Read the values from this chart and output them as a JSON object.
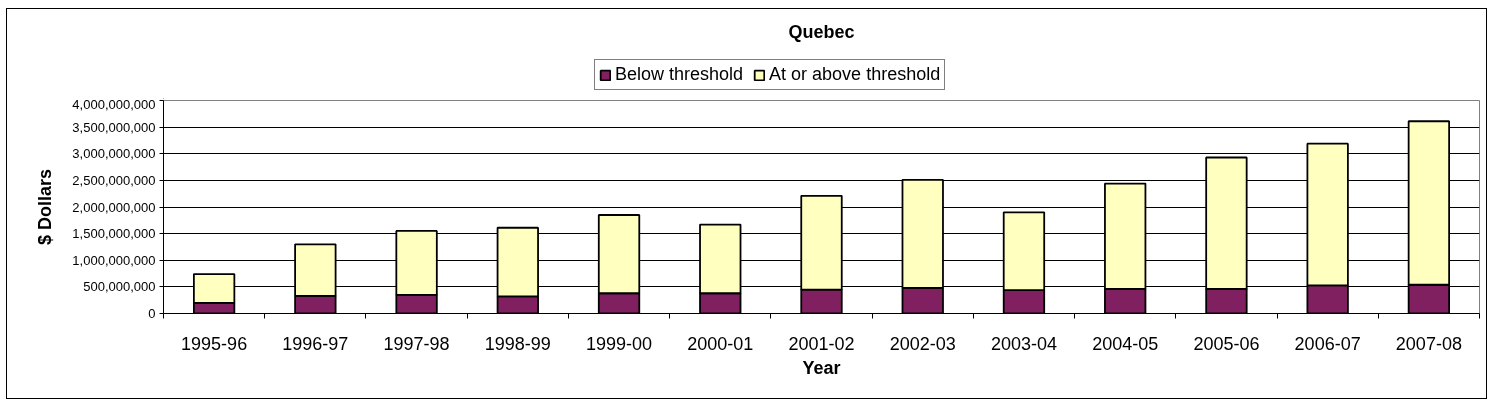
{
  "chart_data": {
    "type": "bar",
    "title": "Quebec",
    "xlabel": "Year",
    "ylabel": "$ Dollars",
    "categories": [
      "1995-96",
      "1996-97",
      "1997-98",
      "1998-99",
      "1999-00",
      "2000-01",
      "2001-02",
      "2002-03",
      "2003-04",
      "2004-05",
      "2005-06",
      "2006-07",
      "2007-08"
    ],
    "stacked": true,
    "series": [
      {
        "name": "Below threshold",
        "color": "#802060",
        "values": [
          200000000,
          330000000,
          350000000,
          320000000,
          380000000,
          380000000,
          450000000,
          480000000,
          440000000,
          460000000,
          460000000,
          530000000,
          540000000
        ]
      },
      {
        "name": "At or above threshold",
        "color": "#ffffc0",
        "values": [
          540000000,
          970000000,
          1200000000,
          1290000000,
          1470000000,
          1290000000,
          1760000000,
          2030000000,
          1460000000,
          1980000000,
          2470000000,
          2660000000,
          3070000000
        ]
      }
    ],
    "ylim": [
      0,
      4000000000
    ],
    "yticks": [
      0,
      {
        "value": 500000000,
        "label": "500,000,000"
      },
      {
        "value": 1000000000,
        "label": "1,000,000,000"
      },
      {
        "value": 1500000000,
        "label": "1,500,000,000"
      },
      {
        "value": 2000000000,
        "label": "2,000,000,000"
      },
      {
        "value": 2500000000,
        "label": "2,500,000,000"
      },
      {
        "value": 3000000000,
        "label": "3,000,000,000"
      },
      {
        "value": 3500000000,
        "label": "3,500,000,000"
      },
      {
        "value": 4000000000,
        "label": "4,000,000,000"
      }
    ],
    "grid": "y",
    "legend": "top"
  }
}
